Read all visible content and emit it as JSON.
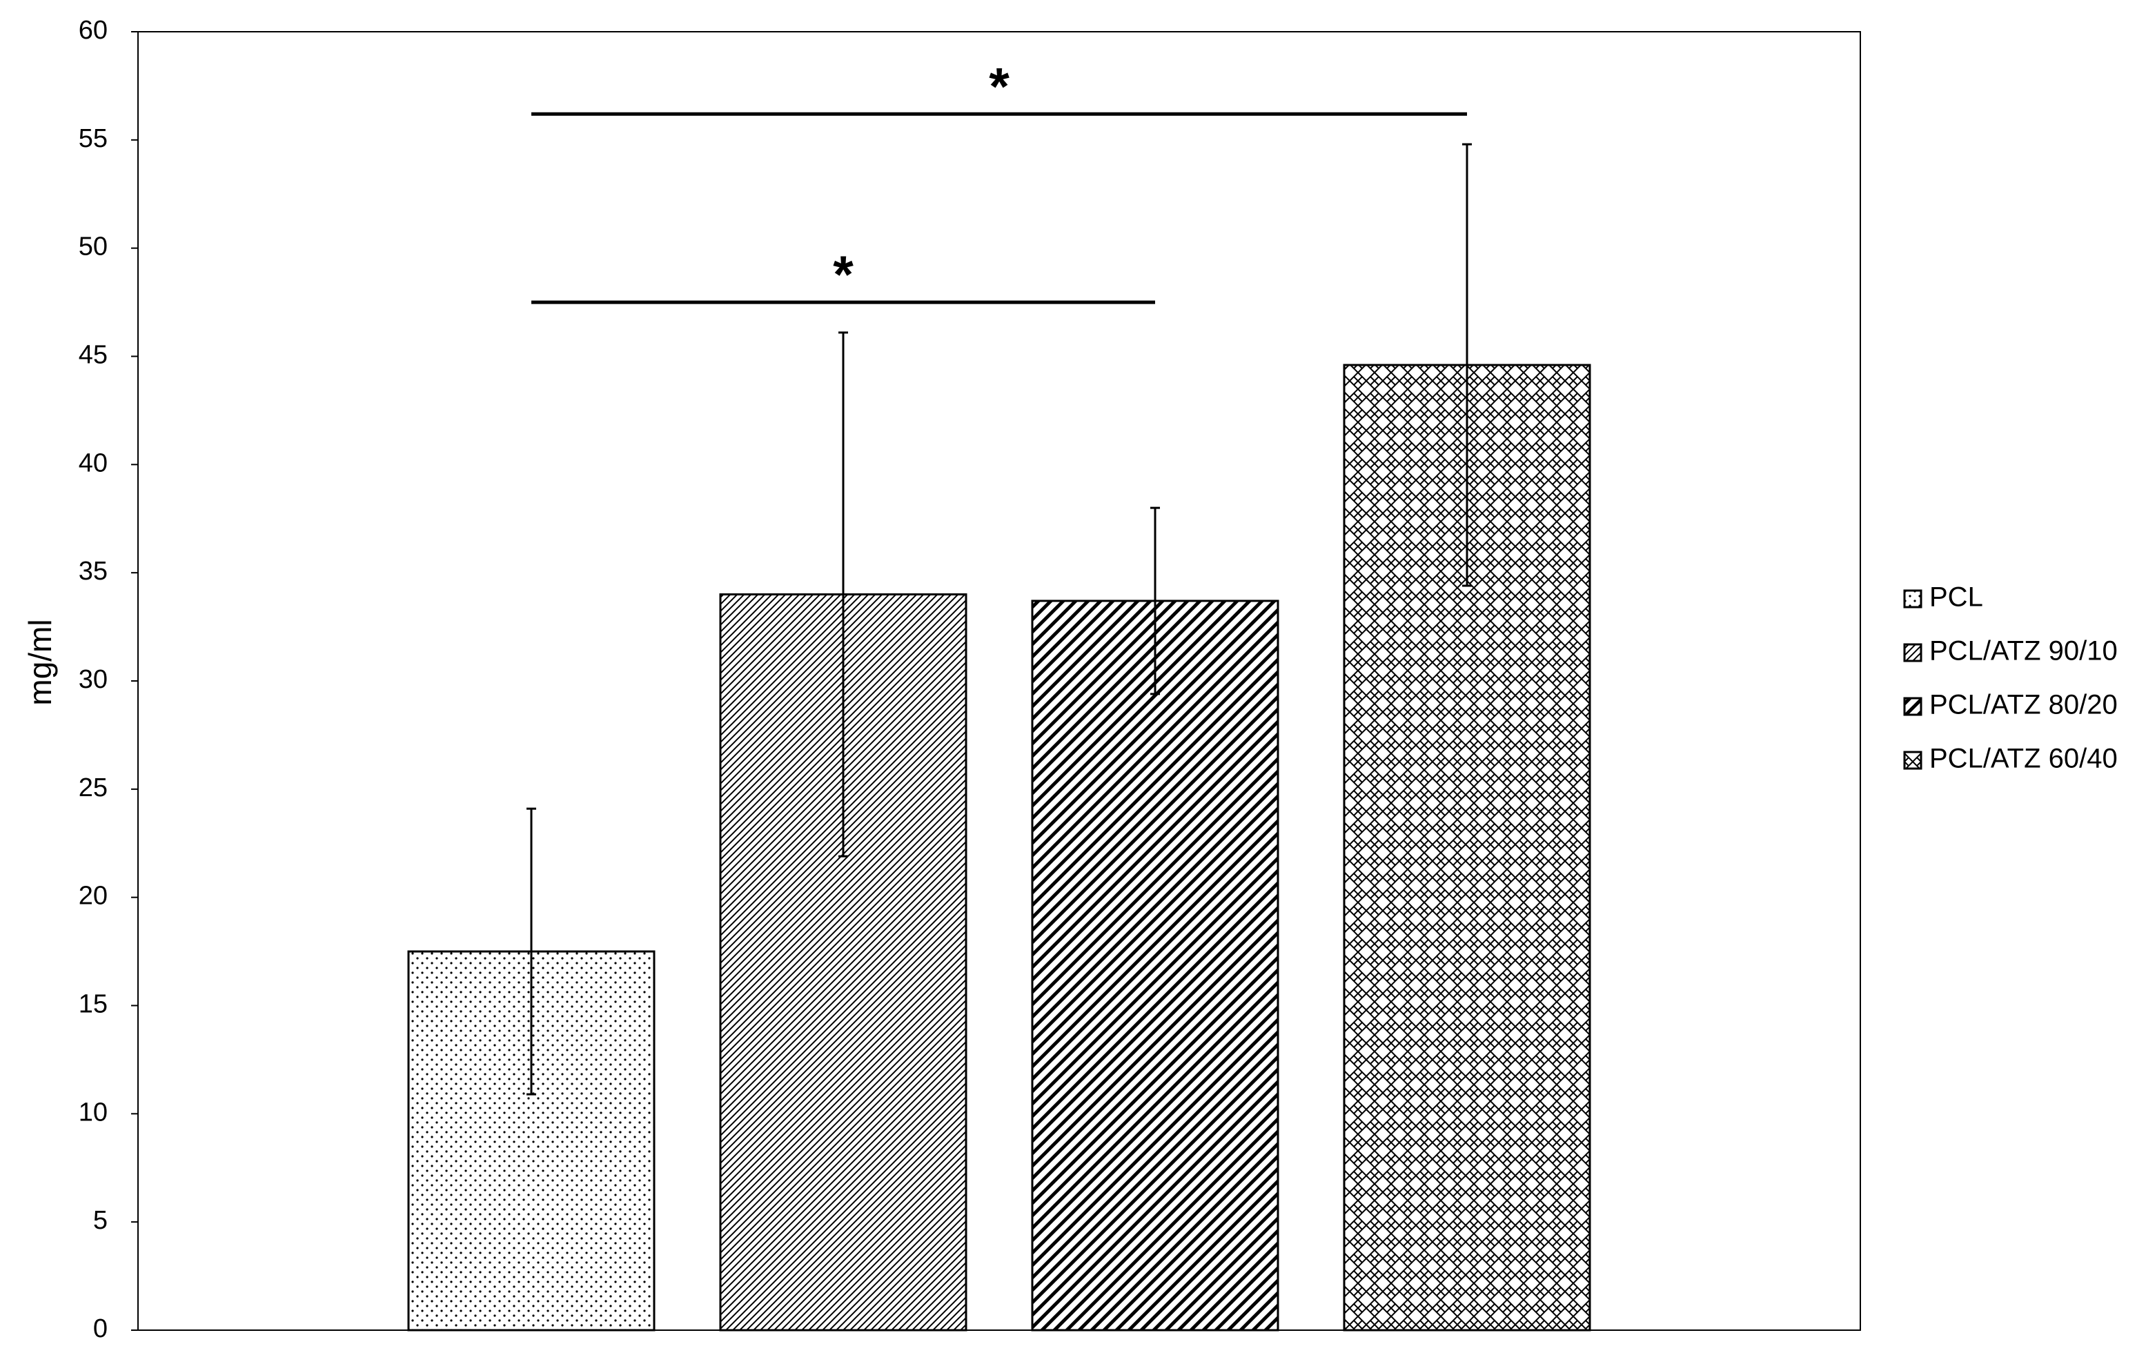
{
  "chart_data": {
    "type": "bar",
    "y_label": "mg/ml",
    "categories": [
      null
    ],
    "series": [
      {
        "name": "PCL",
        "color": "#000000",
        "pattern": "dots",
        "values": [
          17.5
        ],
        "errors": [
          6.6
        ]
      },
      {
        "name": "PCL/ATZ 90/10",
        "color": "#000000",
        "pattern": "fine-diagonal",
        "values": [
          34.0
        ],
        "errors": [
          12.1
        ]
      },
      {
        "name": "PCL/ATZ 80/20",
        "color": "#000000",
        "pattern": "wide-diagonal",
        "values": [
          33.7
        ],
        "errors": [
          4.3
        ]
      },
      {
        "name": "PCL/ATZ 60/40",
        "color": "#000000",
        "pattern": "weave",
        "values": [
          44.6
        ],
        "errors": [
          10.2
        ]
      }
    ],
    "ylim": [
      0,
      60
    ],
    "yticks": [
      0,
      5,
      10,
      15,
      20,
      25,
      30,
      35,
      40,
      45,
      50,
      55,
      60
    ],
    "legend": "right",
    "annotations": [
      {
        "text": "*",
        "y": 47.5,
        "between": [
          "PCL",
          "PCL/ATZ 80/20"
        ]
      },
      {
        "text": "*",
        "y": 56.2,
        "between": [
          "PCL",
          "PCL/ATZ 60/40"
        ]
      }
    ]
  }
}
